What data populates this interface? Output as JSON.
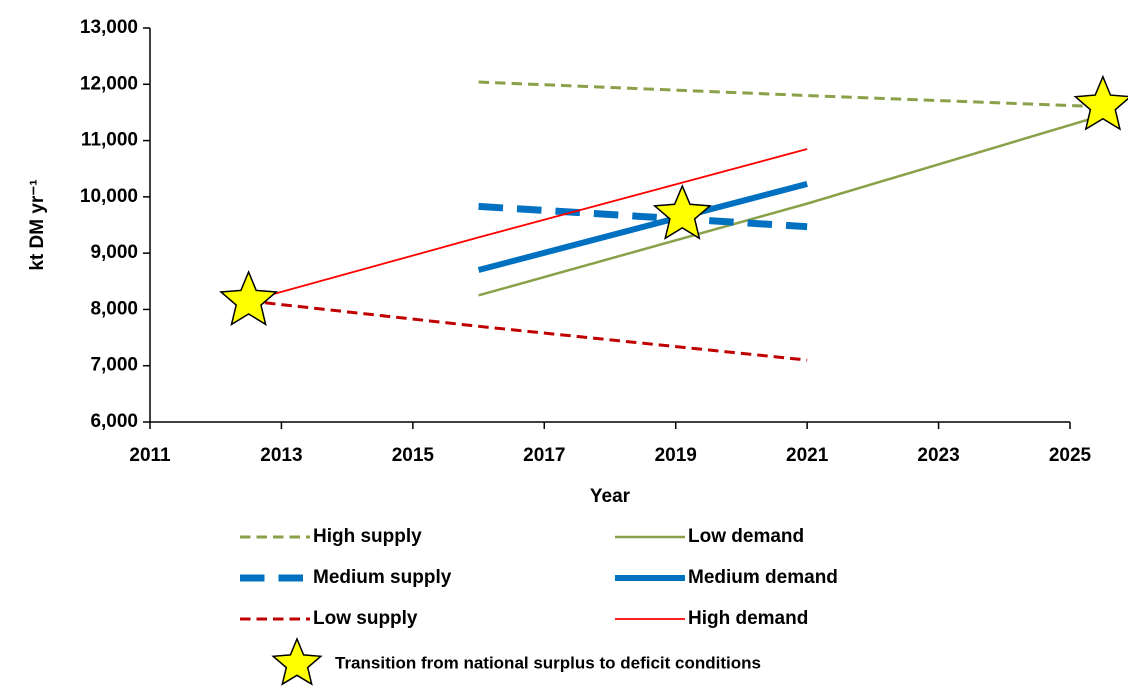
{
  "chart_data": {
    "type": "line",
    "x_label": "Year",
    "y_label": "kt DM yr⁻¹",
    "xlim": [
      2011,
      2025
    ],
    "xticks": [
      2011,
      2013,
      2015,
      2017,
      2019,
      2021,
      2023,
      2025
    ],
    "ylim": [
      6000,
      13000
    ],
    "yticks": [
      {
        "value": 6000,
        "label": "6,000"
      },
      {
        "value": 7000,
        "label": "7,000"
      },
      {
        "value": 8000,
        "label": "8,000"
      },
      {
        "value": 9000,
        "label": "9,000"
      },
      {
        "value": 10000,
        "label": "10,000"
      },
      {
        "value": 11000,
        "label": "11,000"
      },
      {
        "value": 12000,
        "label": "12,000"
      },
      {
        "value": 13000,
        "label": "13,000"
      }
    ],
    "grid": false,
    "series": [
      {
        "name": "High supply",
        "color": "#8aa14a",
        "line_style": "dashed",
        "width": 3,
        "x": [
          2016,
          2021,
          2025.5
        ],
        "values": [
          12040,
          11800,
          11600
        ]
      },
      {
        "name": "Low demand",
        "color": "#8aa14a",
        "line_style": "solid",
        "width": 2.5,
        "x": [
          2016,
          2021,
          2025.5
        ],
        "values": [
          8250,
          9880,
          11450
        ]
      },
      {
        "name": "Medium supply",
        "color": "#0070c0",
        "line_style": "dashed",
        "width": 7,
        "x": [
          2016,
          2021
        ],
        "values": [
          9830,
          9470
        ]
      },
      {
        "name": "Medium demand",
        "color": "#0070c0",
        "line_style": "solid",
        "width": 6,
        "x": [
          2016,
          2021
        ],
        "values": [
          8700,
          10230
        ]
      },
      {
        "name": "Low supply",
        "color": "#c00000",
        "line_style": "dashed",
        "width": 3,
        "x": [
          2012.5,
          2016,
          2021
        ],
        "values": [
          8150,
          7700,
          7100
        ]
      },
      {
        "name": "High demand",
        "color": "#ff0000",
        "line_style": "solid",
        "width": 1.8,
        "x": [
          2012.5,
          2016,
          2021
        ],
        "values": [
          8150,
          9280,
          10850
        ]
      }
    ],
    "markers": {
      "name": "Transition from national surplus to deficit conditions",
      "color": "#ffff00",
      "x": [
        2012.5,
        2019.1,
        2025.5
      ],
      "values": [
        8150,
        9680,
        11620
      ]
    }
  }
}
